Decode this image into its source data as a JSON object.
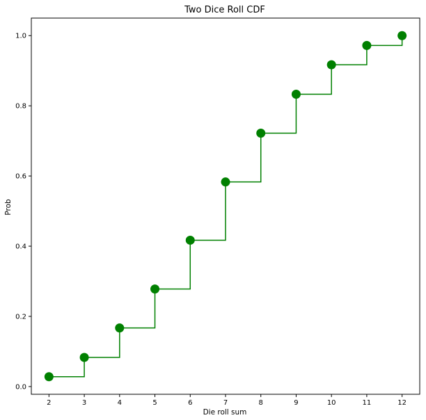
{
  "chart_data": {
    "type": "line",
    "title": "Two Dice Roll CDF",
    "xlabel": "Die roll sum",
    "ylabel": "Prob",
    "x": [
      2,
      3,
      4,
      5,
      6,
      7,
      8,
      9,
      10,
      11,
      12
    ],
    "series": [
      {
        "values": [
          0.028,
          0.083,
          0.167,
          0.278,
          0.417,
          0.583,
          0.722,
          0.833,
          0.917,
          0.972,
          1.0
        ],
        "step": "post",
        "markers": "circle",
        "color": "#008000"
      }
    ],
    "xticks": [
      "2",
      "3",
      "4",
      "5",
      "6",
      "7",
      "8",
      "9",
      "10",
      "11",
      "12"
    ],
    "yticks": [
      "0.0",
      "0.2",
      "0.4",
      "0.6",
      "0.8",
      "1.0"
    ],
    "ytick_values": [
      0.0,
      0.2,
      0.4,
      0.6,
      0.8,
      1.0
    ],
    "xlim": [
      1.5,
      12.5
    ],
    "ylim": [
      -0.022,
      1.05
    ],
    "grid": false,
    "legend": "none"
  }
}
